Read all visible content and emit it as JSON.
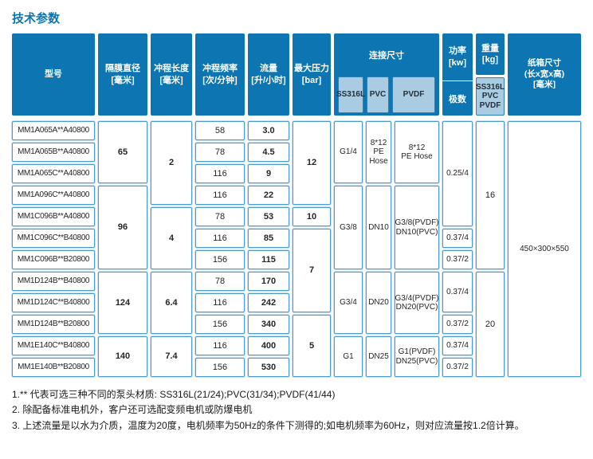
{
  "title": "技术参数",
  "colors": {
    "header_blue": "#0d76b2",
    "light_blue": "#a9cce3",
    "cell_border_blue": "#4c9cca",
    "title_blue": "#0d74b0"
  },
  "header": {
    "model": "型号",
    "diaphragm": "隔膜直径\n[毫米]",
    "stroke_length": "冲程长度\n[毫米]",
    "stroke_frequency": "冲程频率\n[次/分钟]",
    "flow": "流量\n[升/小时]",
    "max_pressure": "最大压力\n[bar]",
    "connection": "连接尺寸",
    "connection_materials": [
      "SS316L",
      "PVC",
      "PVDF"
    ],
    "power": "功率\n[kw]",
    "poles": "极数",
    "weight": "重量\n[kg]",
    "weight_materials": "SS316L\nPVC\nPVDF",
    "carton": "纸箱尺寸\n(长x宽x高)\n[毫米]"
  },
  "table": {
    "cells": [
      {
        "col": 1,
        "row": 1,
        "span": 1,
        "text": "MM1A065A**A40800",
        "cls": "model"
      },
      {
        "col": 1,
        "row": 2,
        "span": 1,
        "text": "MM1A065B**A40800",
        "cls": "model"
      },
      {
        "col": 1,
        "row": 3,
        "span": 1,
        "text": "MM1A065C**A40800",
        "cls": "model"
      },
      {
        "col": 1,
        "row": 4,
        "span": 1,
        "text": "MM1A096C**A40800",
        "cls": "model"
      },
      {
        "col": 1,
        "row": 5,
        "span": 1,
        "text": "MM1C096B**A40800",
        "cls": "model"
      },
      {
        "col": 1,
        "row": 6,
        "span": 1,
        "text": "MM1C096C**B40800",
        "cls": "model"
      },
      {
        "col": 1,
        "row": 7,
        "span": 1,
        "text": "MM1C096B**B20800",
        "cls": "model"
      },
      {
        "col": 1,
        "row": 8,
        "span": 1,
        "text": "MM1D124B**B40800",
        "cls": "model"
      },
      {
        "col": 1,
        "row": 9,
        "span": 1,
        "text": "MM1D124C**B40800",
        "cls": "model"
      },
      {
        "col": 1,
        "row": 10,
        "span": 1,
        "text": "MM1D124B**B20800",
        "cls": "model"
      },
      {
        "col": 1,
        "row": 11,
        "span": 1,
        "text": "MM1E140C**B40800",
        "cls": "model"
      },
      {
        "col": 1,
        "row": 12,
        "span": 1,
        "text": "MM1E140B**B20800",
        "cls": "model"
      },
      {
        "col": 2,
        "row": 1,
        "span": 3,
        "text": "65",
        "bold": true
      },
      {
        "col": 2,
        "row": 4,
        "span": 4,
        "text": "96",
        "bold": true
      },
      {
        "col": 2,
        "row": 8,
        "span": 3,
        "text": "124",
        "bold": true
      },
      {
        "col": 2,
        "row": 11,
        "span": 2,
        "text": "140",
        "bold": true
      },
      {
        "col": 3,
        "row": 1,
        "span": 4,
        "text": "2",
        "bold": true
      },
      {
        "col": 3,
        "row": 5,
        "span": 3,
        "text": "4",
        "bold": true
      },
      {
        "col": 3,
        "row": 8,
        "span": 3,
        "text": "6.4",
        "bold": true
      },
      {
        "col": 3,
        "row": 11,
        "span": 2,
        "text": "7.4",
        "bold": true
      },
      {
        "col": 4,
        "row": 1,
        "span": 1,
        "text": "58"
      },
      {
        "col": 4,
        "row": 2,
        "span": 1,
        "text": "78"
      },
      {
        "col": 4,
        "row": 3,
        "span": 1,
        "text": "116"
      },
      {
        "col": 4,
        "row": 4,
        "span": 1,
        "text": "116"
      },
      {
        "col": 4,
        "row": 5,
        "span": 1,
        "text": "78"
      },
      {
        "col": 4,
        "row": 6,
        "span": 1,
        "text": "116"
      },
      {
        "col": 4,
        "row": 7,
        "span": 1,
        "text": "156"
      },
      {
        "col": 4,
        "row": 8,
        "span": 1,
        "text": "78"
      },
      {
        "col": 4,
        "row": 9,
        "span": 1,
        "text": "116"
      },
      {
        "col": 4,
        "row": 10,
        "span": 1,
        "text": "156"
      },
      {
        "col": 4,
        "row": 11,
        "span": 1,
        "text": "116"
      },
      {
        "col": 4,
        "row": 12,
        "span": 1,
        "text": "156"
      },
      {
        "col": 5,
        "row": 1,
        "span": 1,
        "text": "3.0",
        "bold": true
      },
      {
        "col": 5,
        "row": 2,
        "span": 1,
        "text": "4.5",
        "bold": true
      },
      {
        "col": 5,
        "row": 3,
        "span": 1,
        "text": "9",
        "bold": true
      },
      {
        "col": 5,
        "row": 4,
        "span": 1,
        "text": "22",
        "bold": true
      },
      {
        "col": 5,
        "row": 5,
        "span": 1,
        "text": "53",
        "bold": true
      },
      {
        "col": 5,
        "row": 6,
        "span": 1,
        "text": "85",
        "bold": true
      },
      {
        "col": 5,
        "row": 7,
        "span": 1,
        "text": "115",
        "bold": true
      },
      {
        "col": 5,
        "row": 8,
        "span": 1,
        "text": "170",
        "bold": true
      },
      {
        "col": 5,
        "row": 9,
        "span": 1,
        "text": "242",
        "bold": true
      },
      {
        "col": 5,
        "row": 10,
        "span": 1,
        "text": "340",
        "bold": true
      },
      {
        "col": 5,
        "row": 11,
        "span": 1,
        "text": "400",
        "bold": true
      },
      {
        "col": 5,
        "row": 12,
        "span": 1,
        "text": "530",
        "bold": true
      },
      {
        "col": 6,
        "row": 1,
        "span": 4,
        "text": "12",
        "bold": true
      },
      {
        "col": 6,
        "row": 5,
        "span": 1,
        "text": "10",
        "bold": true
      },
      {
        "col": 6,
        "row": 6,
        "span": 4,
        "text": "7",
        "bold": true
      },
      {
        "col": 6,
        "row": 10,
        "span": 3,
        "text": "5",
        "bold": true
      },
      {
        "col": 7,
        "row": 1,
        "span": 3,
        "text": "G1/4",
        "cls": "small"
      },
      {
        "col": 7,
        "row": 4,
        "span": 4,
        "text": "G3/8",
        "cls": "small"
      },
      {
        "col": 7,
        "row": 8,
        "span": 3,
        "text": "G3/4",
        "cls": "small"
      },
      {
        "col": 7,
        "row": 11,
        "span": 2,
        "text": "G1",
        "cls": "small"
      },
      {
        "col": 8,
        "row": 1,
        "span": 3,
        "text": "8*12\nPE\nHose",
        "cls": "small"
      },
      {
        "col": 8,
        "row": 4,
        "span": 4,
        "text": "DN10",
        "cls": "small"
      },
      {
        "col": 8,
        "row": 8,
        "span": 3,
        "text": "DN20",
        "cls": "small"
      },
      {
        "col": 8,
        "row": 11,
        "span": 2,
        "text": "DN25",
        "cls": "small"
      },
      {
        "col": 9,
        "row": 1,
        "span": 3,
        "text": "8*12\nPE Hose",
        "cls": "small"
      },
      {
        "col": 9,
        "row": 4,
        "span": 4,
        "text": "G3/8(PVDF)\nDN10(PVC)",
        "cls": "small"
      },
      {
        "col": 9,
        "row": 8,
        "span": 3,
        "text": "G3/4(PVDF)\nDN20(PVC)",
        "cls": "small"
      },
      {
        "col": 9,
        "row": 11,
        "span": 2,
        "text": "G1(PVDF)\nDN25(PVC)",
        "cls": "small"
      },
      {
        "col": 10,
        "row": 1,
        "span": 5,
        "text": "0.25/4",
        "cls": "small"
      },
      {
        "col": 10,
        "row": 6,
        "span": 1,
        "text": "0.37/4",
        "cls": "small"
      },
      {
        "col": 10,
        "row": 7,
        "span": 1,
        "text": "0.37/2",
        "cls": "small"
      },
      {
        "col": 10,
        "row": 8,
        "span": 2,
        "text": "0.37/4",
        "cls": "small"
      },
      {
        "col": 10,
        "row": 10,
        "span": 1,
        "text": "0.37/2",
        "cls": "small"
      },
      {
        "col": 10,
        "row": 11,
        "span": 1,
        "text": "0.37/4",
        "cls": "small"
      },
      {
        "col": 10,
        "row": 12,
        "span": 1,
        "text": "0.37/2",
        "cls": "small"
      },
      {
        "col": 11,
        "row": 1,
        "span": 7,
        "text": "16"
      },
      {
        "col": 11,
        "row": 8,
        "span": 5,
        "text": "20"
      },
      {
        "col": 12,
        "row": 1,
        "span": 12,
        "text": "450×300×550",
        "cls": "small"
      }
    ]
  },
  "notes": [
    "1.** 代表可选三种不同的泵头材质: SS316L(21/24);PVC(31/34);PVDF(41/44)",
    "2. 除配备标准电机外，客户还可选配变频电机或防爆电机",
    "3. 上述流量是以水为介质，温度为20度，电机频率为50Hz的条件下测得的;如电机频率为60Hz，则对应流量按1.2倍计算。"
  ]
}
